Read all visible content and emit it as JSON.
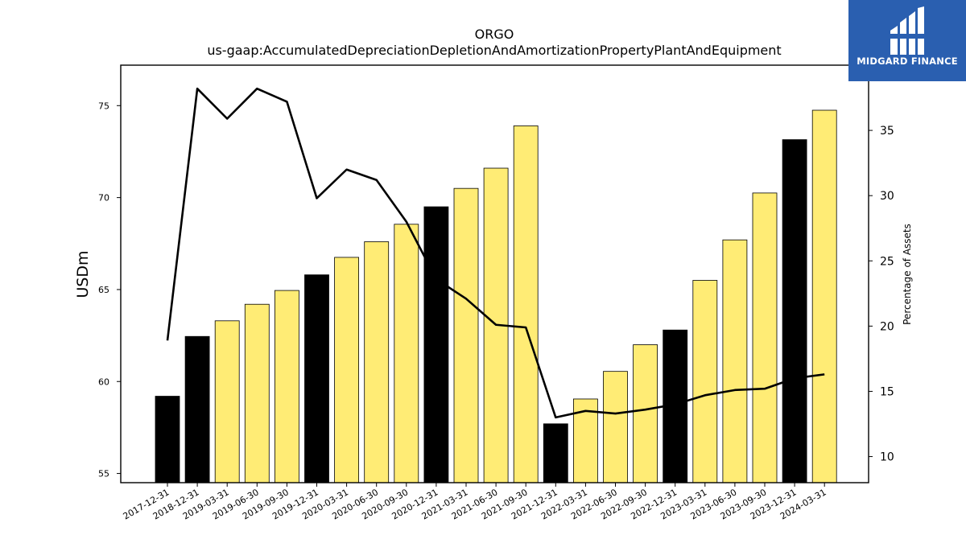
{
  "chart_data": {
    "type": "bar",
    "title": "ORGO",
    "subtitle": "us-gaap:AccumulatedDepreciationDepletionAndAmortizationPropertyPlantAndEquipment",
    "ylabel": "USDm",
    "y2label": "Percentage of Assets",
    "categories": [
      "2017-12-31",
      "2018-12-31",
      "2019-03-31",
      "2019-06-30",
      "2019-09-30",
      "2019-12-31",
      "2020-03-31",
      "2020-06-30",
      "2020-09-30",
      "2020-12-31",
      "2021-03-31",
      "2021-06-30",
      "2021-09-30",
      "2021-12-31",
      "2022-03-31",
      "2022-06-30",
      "2022-09-30",
      "2022-12-31",
      "2023-03-31",
      "2023-06-30",
      "2023-09-30",
      "2023-12-31",
      "2024-03-31"
    ],
    "bar_values": [
      59.2,
      62.45,
      63.3,
      64.2,
      64.95,
      65.8,
      66.75,
      67.6,
      68.55,
      69.5,
      70.5,
      71.6,
      73.9,
      57.7,
      59.05,
      60.55,
      62.0,
      62.8,
      65.5,
      67.7,
      70.25,
      73.15,
      74.75
    ],
    "bar_colors": [
      "#000000",
      "#000000",
      "#ffec75",
      "#ffec75",
      "#ffec75",
      "#000000",
      "#ffec75",
      "#ffec75",
      "#ffec75",
      "#000000",
      "#ffec75",
      "#ffec75",
      "#ffec75",
      "#000000",
      "#ffec75",
      "#ffec75",
      "#ffec75",
      "#000000",
      "#ffec75",
      "#ffec75",
      "#ffec75",
      "#000000",
      "#ffec75"
    ],
    "line_values": [
      18.9,
      38.2,
      35.9,
      38.2,
      37.2,
      29.8,
      32.0,
      31.2,
      28.0,
      23.6,
      22.1,
      20.1,
      19.9,
      13.0,
      13.5,
      13.3,
      13.6,
      14.0,
      14.7,
      15.1,
      15.2,
      16.0,
      16.3
    ],
    "ylim": [
      54.5,
      77.2
    ],
    "y2lim": [
      8.0,
      40.0
    ],
    "yticks": [
      55,
      60,
      65,
      70,
      75
    ],
    "y2ticks": [
      10,
      15,
      20,
      25,
      30,
      35
    ],
    "grid": false
  },
  "logo": {
    "text": "MIDGARD FINANCE"
  }
}
